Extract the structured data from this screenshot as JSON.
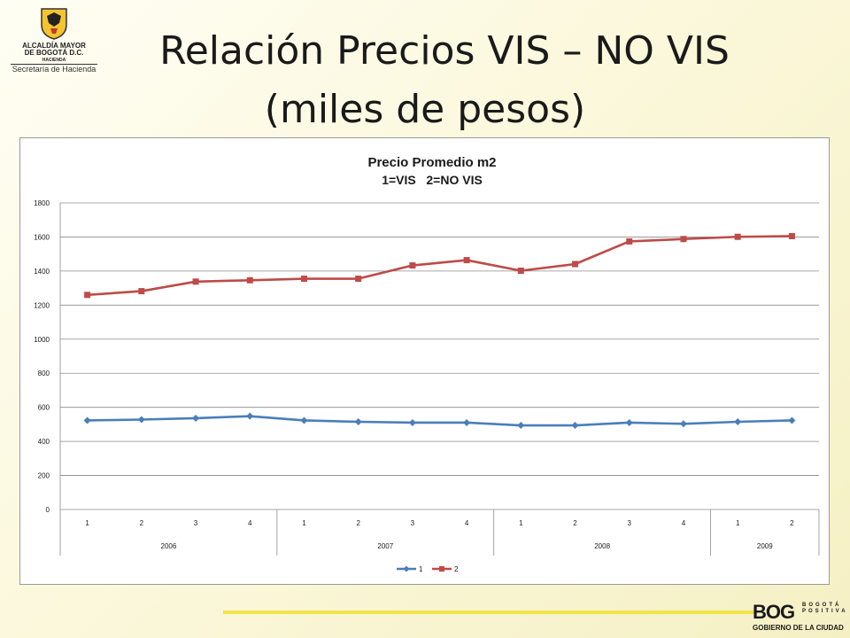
{
  "logo": {
    "line1": "ALCALDÍA MAYOR",
    "line2": "DE BOGOTÁ D.C.",
    "line3": "HACIENDA",
    "line4": "Secretaría de Hacienda"
  },
  "title_line1": "Relación Precios VIS – NO VIS",
  "title_line2": "(miles de pesos)",
  "footer": {
    "bog_mark": "BOG",
    "bog_small_1": "BOGOTÁ",
    "bog_small_2": "POSITIVA",
    "bog_sub": "GOBIERNO DE LA CIUDAD"
  },
  "chart_data": {
    "type": "line",
    "title": "Precio Promedio m2",
    "subtitle": "1=VIS   2=NO VIS",
    "categories": [
      "1",
      "2",
      "3",
      "4",
      "1",
      "2",
      "3",
      "4",
      "1",
      "2",
      "3",
      "4",
      "1",
      "2"
    ],
    "year_groups": [
      {
        "label": "2006",
        "count": 4
      },
      {
        "label": "2007",
        "count": 4
      },
      {
        "label": "2008",
        "count": 4
      },
      {
        "label": "2009",
        "count": 2
      }
    ],
    "ylim": [
      0,
      1800
    ],
    "yticks": [
      0,
      200,
      400,
      600,
      800,
      1000,
      1200,
      1400,
      1600,
      1800
    ],
    "grid": true,
    "legend_position": "bottom",
    "series": [
      {
        "name": "1",
        "color": "#4a7ebb",
        "marker": "diamond",
        "values": [
          523,
          528,
          536,
          548,
          523,
          515,
          510,
          510,
          494,
          494,
          510,
          503,
          515,
          523
        ]
      },
      {
        "name": "2",
        "color": "#be4b48",
        "marker": "square",
        "values": [
          1260,
          1282,
          1338,
          1346,
          1355,
          1355,
          1433,
          1464,
          1402,
          1441,
          1574,
          1588,
          1601,
          1605
        ]
      }
    ]
  }
}
